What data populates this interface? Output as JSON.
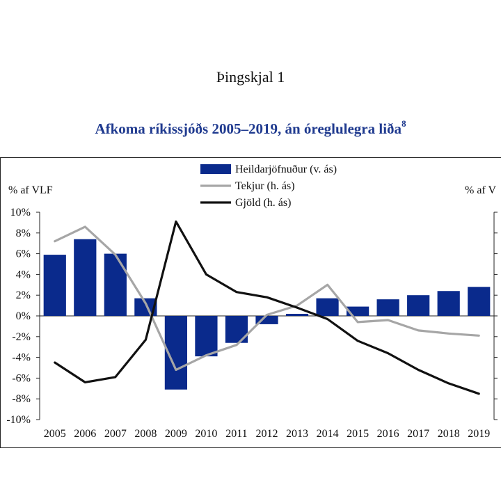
{
  "document": {
    "header": "Þingskjal 1"
  },
  "chart_data": {
    "type": "bar+line",
    "title": "Afkoma ríkissjóðs 2005–2019, án óreglulegra liða",
    "title_footnote": "8",
    "ylabel_left": "% af VLF",
    "ylabel_right": "% af V",
    "ylim": [
      -10,
      10
    ],
    "yticks": [
      10,
      8,
      6,
      4,
      2,
      0,
      -2,
      -4,
      -6,
      -8,
      -10
    ],
    "ytick_labels": [
      "10%",
      "8%",
      "6%",
      "4%",
      "2%",
      "0%",
      "-2%",
      "-4%",
      "-6%",
      "-8%",
      "-10%"
    ],
    "categories": [
      "2005",
      "2006",
      "2007",
      "2008",
      "2009",
      "2010",
      "2011",
      "2012",
      "2013",
      "2014",
      "2015",
      "2016",
      "2017",
      "2018",
      "2019"
    ],
    "legend_position": "top-center",
    "series": [
      {
        "name": "Heildarjöfnuður (v. ás)",
        "type": "bar",
        "color": "#0a2a8c",
        "values": [
          5.9,
          7.4,
          6.0,
          1.7,
          -7.1,
          -3.9,
          -2.6,
          -0.8,
          0.2,
          1.7,
          0.9,
          1.6,
          2.0,
          2.4,
          2.8
        ]
      },
      {
        "name": "Tekjur (h. ás)",
        "type": "line",
        "color": "#a6a6a6",
        "values": [
          7.2,
          8.6,
          5.9,
          1.2,
          -5.2,
          -3.8,
          -2.8,
          0.1,
          1.0,
          3.0,
          -0.6,
          -0.4,
          -1.4,
          -1.7,
          -1.9
        ]
      },
      {
        "name": "Gjöld (h. ás)",
        "type": "line",
        "color": "#111111",
        "values": [
          -4.5,
          -6.4,
          -5.9,
          -2.3,
          9.1,
          4.0,
          2.3,
          1.8,
          0.8,
          -0.3,
          -2.4,
          -3.6,
          -5.2,
          -6.5,
          -7.5
        ]
      }
    ]
  }
}
